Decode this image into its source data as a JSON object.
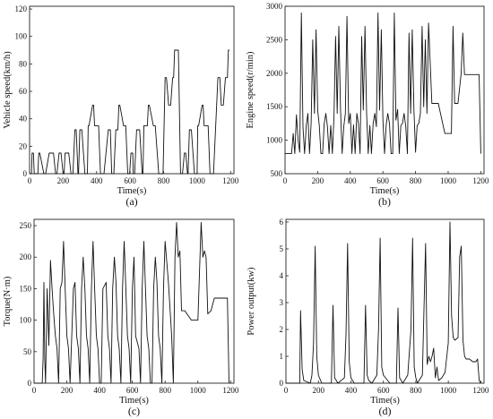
{
  "chart_data": [
    {
      "type": "line",
      "caption": "(a)",
      "xlabel": "Time(s)",
      "ylabel": "Vehicle speed(km/h)",
      "xlim": [
        0,
        1220
      ],
      "ylim": [
        0,
        122
      ],
      "xticks": [
        0,
        200,
        400,
        600,
        800,
        1000,
        1200
      ],
      "yticks": [
        0,
        20,
        40,
        60,
        80,
        100,
        120
      ],
      "series": [
        {
          "x": [
            0,
            11,
            15,
            23,
            28,
            49,
            55,
            61,
            85,
            96,
            117,
            143,
            155,
            163,
            176,
            188,
            200,
            206,
            212,
            234,
            247,
            259,
            270,
            278,
            289,
            292,
            300,
            312,
            330,
            345,
            350,
            355,
            376,
            382,
            388,
            412,
            423,
            444,
            470,
            482,
            490,
            503,
            515,
            527,
            533,
            539,
            561,
            574,
            586,
            597,
            605,
            616,
            619,
            627,
            639,
            657,
            672,
            677,
            682,
            703,
            709,
            715,
            739,
            750,
            771,
            797,
            809,
            817,
            830,
            842,
            854,
            860,
            866,
            888,
            901,
            913,
            924,
            932,
            943,
            946,
            954,
            966,
            984,
            1000,
            1004,
            1009,
            1030,
            1036,
            1042,
            1066,
            1077,
            1098,
            1124,
            1136,
            1144,
            1157,
            1169,
            1181,
            1187,
            1193
          ],
          "y": [
            0,
            0,
            15,
            15,
            0,
            0,
            15,
            15,
            0,
            0,
            15,
            15,
            0,
            0,
            15,
            15,
            0,
            0,
            15,
            15,
            0,
            0,
            32,
            32,
            0,
            0,
            32,
            32,
            0,
            0,
            35,
            35,
            50,
            50,
            35,
            35,
            0,
            0,
            32,
            32,
            0,
            0,
            32,
            32,
            50,
            50,
            35,
            35,
            0,
            0,
            15,
            15,
            0,
            0,
            32,
            32,
            0,
            0,
            35,
            35,
            50,
            50,
            35,
            35,
            0,
            0,
            70,
            70,
            50,
            50,
            70,
            70,
            90,
            90,
            0,
            0,
            15,
            15,
            0,
            0,
            32,
            32,
            0,
            0,
            35,
            35,
            50,
            50,
            35,
            35,
            0,
            0,
            70,
            70,
            50,
            50,
            70,
            70,
            90,
            90
          ]
        }
      ]
    },
    {
      "type": "line",
      "caption": "(b)",
      "xlabel": "Time(s)",
      "ylabel": "Engine speed(r/min)",
      "xlim": [
        0,
        1220
      ],
      "ylim": [
        500,
        3000
      ],
      "xticks": [
        0,
        200,
        400,
        600,
        800,
        1000,
        1200
      ],
      "yticks": [
        500,
        1000,
        1500,
        2000,
        2500,
        3000
      ],
      "series": [
        {
          "x": [
            0,
            20,
            40,
            50,
            60,
            70,
            80,
            90,
            100,
            110,
            120,
            130,
            140,
            150,
            160,
            170,
            180,
            190,
            200,
            210,
            220,
            230,
            240,
            250,
            260,
            270,
            280,
            290,
            300,
            310,
            320,
            330,
            340,
            350,
            360,
            370,
            380,
            390,
            400,
            410,
            420,
            430,
            440,
            450,
            460,
            470,
            480,
            490,
            500,
            510,
            520,
            530,
            540,
            550,
            560,
            570,
            580,
            590,
            600,
            610,
            620,
            630,
            640,
            650,
            660,
            670,
            680,
            690,
            700,
            710,
            720,
            730,
            740,
            750,
            760,
            770,
            780,
            790,
            800,
            810,
            820,
            830,
            840,
            850,
            860,
            870,
            880,
            900,
            940,
            980,
            1000,
            1020,
            1030,
            1040,
            1060,
            1080,
            1090,
            1100,
            1120,
            1150,
            1190,
            1200
          ],
          "y": [
            800,
            800,
            800,
            1100,
            800,
            1380,
            1000,
            820,
            2900,
            1200,
            800,
            1220,
            1400,
            800,
            1250,
            2500,
            1400,
            2650,
            1450,
            1220,
            800,
            800,
            1250,
            1400,
            1200,
            800,
            1220,
            800,
            1350,
            2550,
            1400,
            2700,
            1460,
            800,
            1200,
            1400,
            2850,
            1250,
            1400,
            800,
            1230,
            800,
            1400,
            1250,
            800,
            2550,
            1450,
            2700,
            1400,
            800,
            1220,
            800,
            1250,
            1400,
            1200,
            2900,
            1450,
            2650,
            1300,
            800,
            1220,
            1400,
            1250,
            800,
            800,
            2900,
            1300,
            1460,
            800,
            1220,
            1250,
            1400,
            1200,
            800,
            2600,
            1400,
            2650,
            1450,
            820,
            1220,
            1250,
            1400,
            2700,
            1500,
            2500,
            1400,
            2750,
            1550,
            1550,
            1100,
            1100,
            1100,
            2700,
            1550,
            1550,
            2000,
            2600,
            1980,
            1980,
            1980,
            1980,
            800
          ]
        }
      ]
    },
    {
      "type": "line",
      "caption": "(c)",
      "xlabel": "Time(s)",
      "ylabel": "Torque(N·m)",
      "xlim": [
        0,
        1220
      ],
      "ylim": [
        0,
        260
      ],
      "xticks": [
        0,
        200,
        400,
        600,
        800,
        1000,
        1200
      ],
      "yticks": [
        0,
        50,
        100,
        150,
        200,
        250
      ],
      "series": [
        {
          "x": [
            0,
            50,
            55,
            60,
            65,
            70,
            80,
            90,
            100,
            110,
            120,
            130,
            140,
            150,
            160,
            170,
            180,
            190,
            200,
            210,
            220,
            240,
            250,
            260,
            270,
            280,
            290,
            300,
            310,
            320,
            330,
            340,
            350,
            360,
            370,
            380,
            390,
            400,
            410,
            420,
            440,
            450,
            460,
            470,
            480,
            490,
            500,
            510,
            520,
            530,
            540,
            550,
            560,
            570,
            580,
            590,
            600,
            610,
            620,
            640,
            650,
            660,
            670,
            680,
            690,
            700,
            710,
            720,
            730,
            740,
            750,
            760,
            770,
            780,
            790,
            800,
            820,
            840,
            850,
            860,
            870,
            880,
            890,
            900,
            920,
            960,
            980,
            1000,
            1020,
            1030,
            1040,
            1050,
            1060,
            1080,
            1100,
            1120,
            1150,
            1180,
            1190
          ],
          "y": [
            0,
            0,
            40,
            160,
            40,
            0,
            150,
            60,
            195,
            150,
            110,
            75,
            55,
            0,
            150,
            160,
            225,
            150,
            75,
            55,
            0,
            150,
            160,
            75,
            55,
            0,
            150,
            200,
            150,
            75,
            55,
            0,
            150,
            225,
            150,
            75,
            55,
            0,
            0,
            150,
            160,
            75,
            55,
            0,
            150,
            200,
            160,
            75,
            55,
            0,
            150,
            225,
            150,
            75,
            55,
            0,
            150,
            200,
            75,
            55,
            0,
            150,
            225,
            150,
            75,
            55,
            0,
            0,
            150,
            200,
            160,
            75,
            55,
            0,
            150,
            225,
            160,
            75,
            0,
            200,
            255,
            200,
            210,
            115,
            115,
            100,
            100,
            100,
            255,
            200,
            210,
            200,
            110,
            115,
            135,
            135,
            135,
            135,
            0
          ]
        }
      ]
    },
    {
      "type": "line",
      "caption": "(d)",
      "xlabel": "Time(s)",
      "ylabel": "Power output(kw)",
      "xlim": [
        0,
        1220
      ],
      "ylim": [
        0,
        6.1
      ],
      "xticks": [
        0,
        200,
        400,
        600,
        800,
        1000,
        1200
      ],
      "yticks": [
        0,
        1,
        2,
        3,
        4,
        5,
        6
      ],
      "series": [
        {
          "x": [
            0,
            60,
            85,
            90,
            100,
            110,
            150,
            160,
            170,
            180,
            190,
            200,
            220,
            260,
            280,
            290,
            300,
            310,
            320,
            360,
            370,
            380,
            390,
            400,
            420,
            470,
            480,
            490,
            500,
            510,
            530,
            560,
            570,
            580,
            590,
            600,
            640,
            680,
            690,
            700,
            710,
            720,
            750,
            770,
            780,
            790,
            800,
            810,
            840,
            860,
            870,
            880,
            890,
            900,
            910,
            920,
            930,
            940,
            960,
            980,
            1000,
            1010,
            1020,
            1030,
            1040,
            1060,
            1070,
            1080,
            1090,
            1100,
            1110,
            1130,
            1150,
            1170,
            1180,
            1190,
            1200
          ],
          "y": [
            0,
            0,
            0,
            2.7,
            0.5,
            0.1,
            0,
            0.3,
            1.5,
            5.1,
            1,
            0.3,
            0,
            0,
            0,
            2.9,
            0.2,
            0.1,
            0,
            0.2,
            1.8,
            5.2,
            0.8,
            0.2,
            0,
            0,
            0,
            2.9,
            0.3,
            0.1,
            0,
            0.3,
            2,
            5.4,
            0.6,
            0.3,
            0,
            0,
            2.8,
            0.2,
            0.1,
            0,
            0.3,
            2,
            5.4,
            0.6,
            0.2,
            0,
            0.3,
            5.2,
            0.7,
            1,
            0.8,
            1,
            1.3,
            0.2,
            0.6,
            0.1,
            0.2,
            0.4,
            1.5,
            6,
            2.5,
            1.7,
            1.6,
            1.7,
            4.7,
            5.1,
            1.6,
            1,
            0.9,
            0.9,
            0.8,
            0.8,
            0.9,
            0.1,
            0
          ]
        }
      ]
    }
  ]
}
